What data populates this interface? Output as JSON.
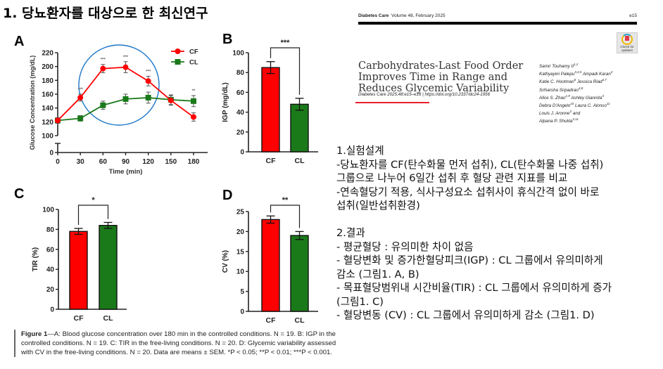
{
  "slide": {
    "title": "1. 당뇨환자를 대상으로 한 최신연구"
  },
  "colors": {
    "cf": "#ff0000",
    "cl": "#1a7a1a",
    "highlight_circle": "#1a76c8",
    "underline": "#e8202a"
  },
  "chart_data": [
    {
      "panel": "A",
      "type": "line",
      "title": "",
      "xlabel": "Time (min)",
      "ylabel": "Glucose Concentration (mg/dL)",
      "x": [
        0,
        30,
        60,
        90,
        120,
        150,
        180
      ],
      "xticks": [
        "0",
        "30",
        "60",
        "90",
        "120",
        "150",
        "180"
      ],
      "yticks": [
        "0",
        "100",
        "120",
        "140",
        "160",
        "180",
        "200",
        "220"
      ],
      "ylim": [
        100,
        220
      ],
      "y_axis_break": true,
      "legend": "top-right",
      "series": [
        {
          "name": "CF",
          "marker": "circle",
          "values": [
            122,
            155,
            197,
            199,
            179,
            151,
            127
          ],
          "sem": [
            4,
            5,
            6,
            8,
            7,
            7,
            6
          ]
        },
        {
          "name": "CL",
          "marker": "square",
          "values": [
            122,
            125,
            144,
            153,
            155,
            152,
            150
          ],
          "sem": [
            4,
            4,
            6,
            7,
            8,
            7,
            8
          ]
        }
      ],
      "significance": [
        "",
        "***",
        "***",
        "***",
        "***",
        "",
        "**"
      ],
      "annotation": "blue circle highlighting 30–120 min"
    },
    {
      "panel": "B",
      "type": "bar",
      "categories": [
        "CF",
        "CL"
      ],
      "values": [
        85,
        48
      ],
      "sem": [
        6,
        6
      ],
      "ylabel": "IGP (mg/dL)",
      "ylim": [
        0,
        100
      ],
      "yticks": [
        "0",
        "20",
        "40",
        "60",
        "80",
        "100"
      ],
      "significance": "***"
    },
    {
      "panel": "C",
      "type": "bar",
      "categories": [
        "CF",
        "CL"
      ],
      "values": [
        78,
        84
      ],
      "sem": [
        3,
        3
      ],
      "ylabel": "TIR (%)",
      "ylim": [
        0,
        100
      ],
      "yticks": [
        "0",
        "20",
        "40",
        "60",
        "80",
        "100"
      ],
      "significance": "*"
    },
    {
      "panel": "D",
      "type": "bar",
      "categories": [
        "CF",
        "CL"
      ],
      "values": [
        23,
        19
      ],
      "sem": [
        0.9,
        1.0
      ],
      "ylabel": "CV (%)",
      "ylim": [
        0,
        25
      ],
      "yticks": [
        "0",
        "5",
        "10",
        "15",
        "20",
        "25"
      ],
      "significance": "**"
    }
  ],
  "caption": {
    "label": "Figure 1",
    "text": "—A: Blood glucose concentration over 180 min in the controlled conditions. N = 19. B: IGP in the controlled conditions. N = 19. C: TIR in the free-living conditions. N = 20. D: Glycemic variability assessed with CV in the free-living conditions. N = 20. Data are means ± SEM. *P < 0.05; **P < 0.01; ***P < 0.001."
  },
  "paper": {
    "journal": "Diabetes Care",
    "issue": "Volume 48, February 2025",
    "page": "e15",
    "badge_label": "Check for updates",
    "title": "Carbohydrates-Last Food Order Improves Time in Range and Reduces Glycemic Variability",
    "citation": "Diabetes Care 2025;48:e15–e16 | https://doi.org/10.2337/dc24-1956",
    "authors": [
      "Samir Touhamy II,1,2",
      "Kathyayini Palepu,3,4,5 Ampadi Karan,3",
      "Katie C. Hootman,6 Jessica Riad,4,7",
      "Sriharsha Sripadrao,4,8",
      "Alice S. Zhao,1,9 Ashley Giannita,3",
      "Debra D'Angelo,10 Laura C. Alonso,11",
      "Louis J. Aronne,3 and",
      "Alpana P. Shukla3,11"
    ]
  },
  "notes": {
    "design_heading": "1.실험설계",
    "design_lines": [
      "-당뇨환자를 CF(탄수화물 먼저 섭취), CL(탄수화물 나중 섭취)",
      "그룹으로 나누어 6일간 섭취 후  혈당 관련 지표를 비교",
      "-연속혈당기 적용, 식사구성요소 섭취사이 휴식간격 없이 바로",
      "섭취(일반섭취환경)"
    ],
    "results_heading": "2.결과",
    "results_lines": [
      "- 평균혈당 : 유의미한 차이 없음",
      "- 혈당변화 및 증가한혈당피크(IGP) : CL 그룹에서 유의미하게",
      "감소 (그림1. A, B)",
      "- 목표혈당범위내 시간비율(TIR) : CL 그룹에서 유의미하게 증가",
      "(그림1. C)",
      "- 혈당변동 (CV) : CL 그룹에서 유의미하게 감소 (그림1. D)"
    ]
  }
}
